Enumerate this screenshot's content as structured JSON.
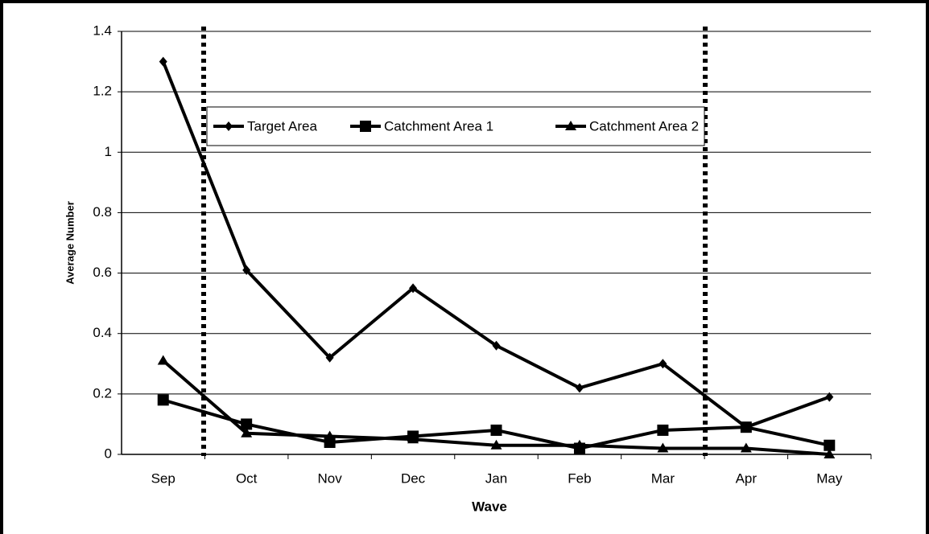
{
  "chart_data": {
    "type": "line",
    "x_label": "Wave",
    "y_label": "Average Number",
    "categories": [
      "Sep",
      "Oct",
      "Nov",
      "Dec",
      "Jan",
      "Feb",
      "Mar",
      "Apr",
      "May"
    ],
    "series": [
      {
        "name": "Target Area",
        "color": "#000000",
        "marker": "diamond",
        "values": [
          1.3,
          0.61,
          0.32,
          0.55,
          0.36,
          0.22,
          0.3,
          0.09,
          0.19
        ]
      },
      {
        "name": "Catchment Area 1",
        "color": "#000000",
        "marker": "square",
        "values": [
          0.18,
          0.1,
          0.04,
          0.06,
          0.08,
          0.02,
          0.08,
          0.09,
          0.03
        ]
      },
      {
        "name": "Catchment Area 2",
        "color": "#000000",
        "marker": "triangle",
        "values": [
          0.31,
          0.07,
          0.06,
          0.05,
          0.03,
          0.03,
          0.02,
          0.02,
          0.0
        ]
      }
    ],
    "ylim": [
      0,
      1.4
    ],
    "yticks": [
      0,
      0.2,
      0.4,
      0.6,
      0.8,
      1,
      1.2,
      1.4
    ],
    "grid": true,
    "legend": "top"
  }
}
